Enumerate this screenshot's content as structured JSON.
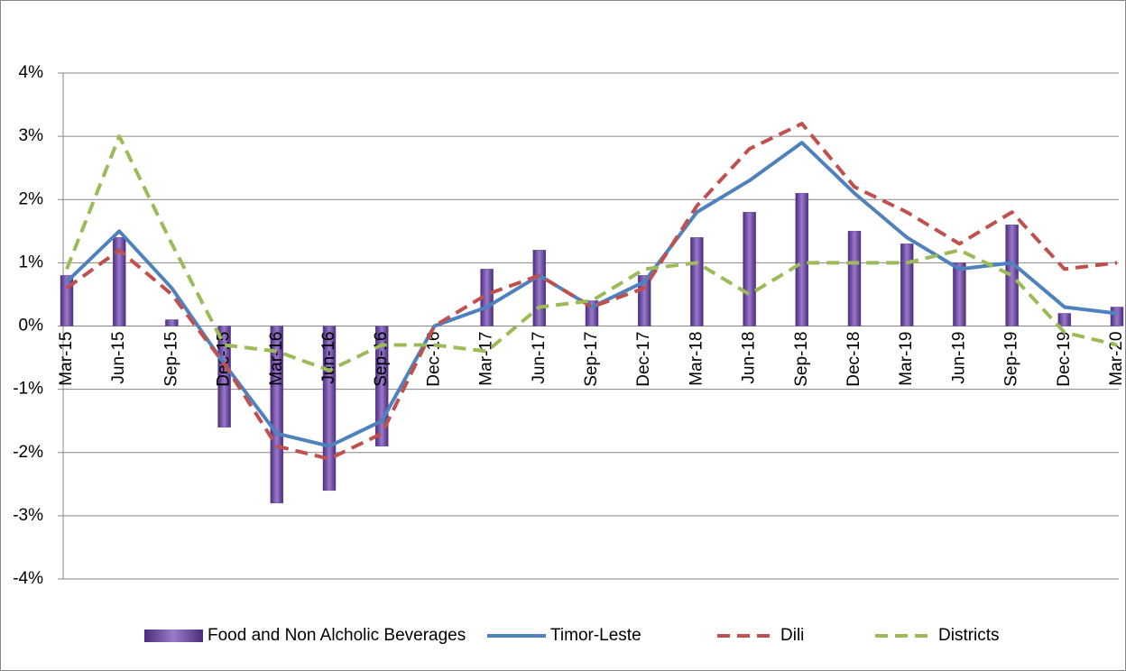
{
  "chart_data": {
    "type": "combo",
    "categories": [
      "Mar-15",
      "Jun-15",
      "Sep-15",
      "Dec-15",
      "Mar-16",
      "Jun-16",
      "Sep-16",
      "Dec-16",
      "Mar-17",
      "Jun-17",
      "Sep-17",
      "Dec-17",
      "Mar-18",
      "Jun-18",
      "Sep-18",
      "Dec-18",
      "Mar-19",
      "Jun-19",
      "Sep-19",
      "Dec-19",
      "Mar-20"
    ],
    "series": [
      {
        "name": "Food and Non Alcholic Beverages",
        "type": "bar",
        "color": "#6b4a9e",
        "values": [
          0.8,
          1.4,
          0.1,
          -1.6,
          -2.8,
          -2.6,
          -1.9,
          0,
          0.9,
          1.2,
          0.4,
          0.8,
          1.4,
          1.8,
          2.1,
          1.5,
          1.3,
          1.0,
          1.6,
          0.2,
          0.3
        ]
      },
      {
        "name": "Timor-Leste",
        "type": "line",
        "style": "solid",
        "color": "#4f81bd",
        "values": [
          0.7,
          1.5,
          0.6,
          -0.6,
          -1.7,
          -1.9,
          -1.5,
          0,
          0.3,
          0.8,
          0.3,
          0.7,
          1.8,
          2.3,
          2.9,
          2.1,
          1.4,
          0.9,
          1.0,
          0.3,
          0.2
        ]
      },
      {
        "name": "Dili",
        "type": "line",
        "style": "dashed",
        "color": "#c0504d",
        "values": [
          0.6,
          1.2,
          0.5,
          -0.6,
          -1.9,
          -2.1,
          -1.7,
          0,
          0.5,
          0.8,
          0.3,
          0.6,
          1.9,
          2.8,
          3.2,
          2.2,
          1.8,
          1.3,
          1.8,
          0.9,
          1.0
        ]
      },
      {
        "name": "Districts",
        "type": "line",
        "style": "dashed",
        "color": "#9bbb59",
        "values": [
          0.9,
          3.0,
          1.3,
          -0.3,
          -0.4,
          -0.7,
          -0.3,
          -0.3,
          -0.4,
          0.3,
          0.4,
          0.9,
          1.0,
          0.5,
          1.0,
          1.0,
          1.0,
          1.2,
          0.8,
          -0.1,
          -0.3
        ]
      }
    ],
    "ylim": [
      -4,
      4
    ],
    "yticks": [
      {
        "value": -4,
        "label": "-4%"
      },
      {
        "value": -3,
        "label": "-3%"
      },
      {
        "value": -2,
        "label": "-2%"
      },
      {
        "value": -1,
        "label": "-1%"
      },
      {
        "value": 0,
        "label": "0%"
      },
      {
        "value": 1,
        "label": "1%"
      },
      {
        "value": 2,
        "label": "2%"
      },
      {
        "value": 3,
        "label": "3%"
      },
      {
        "value": 4,
        "label": "4%"
      }
    ],
    "grid": true,
    "legend": "bottom"
  }
}
